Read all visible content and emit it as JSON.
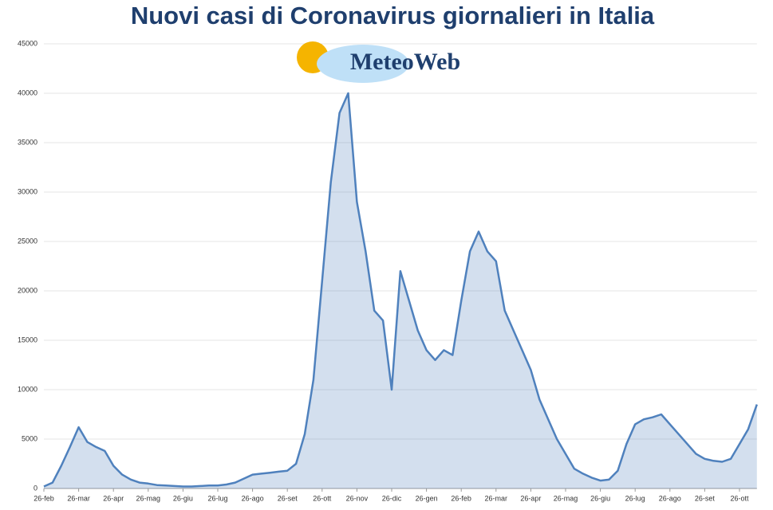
{
  "chart_data": {
    "type": "line",
    "title": "Nuovi casi di Coronavirus giornalieri in Italia",
    "annotations": [
      "MeteoWeb"
    ],
    "color": "#4f81bd",
    "grid": true,
    "ylim": [
      0,
      45000
    ],
    "yticks": [
      0,
      5000,
      10000,
      15000,
      20000,
      25000,
      30000,
      35000,
      40000,
      45000
    ],
    "categories": [
      "26-feb",
      null,
      null,
      null,
      "26-mar",
      null,
      null,
      null,
      "26-apr",
      null,
      null,
      null,
      "26-mag",
      null,
      null,
      null,
      "26-giu",
      null,
      null,
      null,
      "26-lug",
      null,
      null,
      null,
      "26-ago",
      null,
      null,
      null,
      "26-set",
      null,
      null,
      null,
      "26-ott",
      null,
      null,
      null,
      "26-nov",
      null,
      null,
      null,
      "26-dic",
      null,
      null,
      null,
      "26-gen",
      null,
      null,
      null,
      "26-feb",
      null,
      null,
      null,
      "26-mar",
      null,
      null,
      null,
      "26-apr",
      null,
      null,
      null,
      "26-mag",
      null,
      null,
      null,
      "26-giu",
      null,
      null,
      null,
      "26-lug",
      null,
      null,
      null,
      "26-ago",
      null,
      null,
      null,
      "26-set",
      null,
      null,
      null,
      "26-ott",
      null,
      null
    ],
    "values": [
      200,
      600,
      2300,
      4200,
      6200,
      4700,
      4200,
      3800,
      2300,
      1400,
      900,
      600,
      500,
      350,
      300,
      250,
      200,
      200,
      250,
      300,
      300,
      400,
      600,
      1000,
      1400,
      1500,
      1600,
      1700,
      1800,
      2500,
      5500,
      11000,
      21000,
      31000,
      38000,
      40000,
      29000,
      24000,
      18000,
      17000,
      10000,
      22000,
      19000,
      16000,
      14000,
      13000,
      14000,
      13500,
      19000,
      24000,
      26000,
      24000,
      23000,
      18000,
      16000,
      14000,
      12000,
      9000,
      7000,
      5000,
      3500,
      2000,
      1500,
      1100,
      800,
      900,
      1800,
      4500,
      6500,
      7000,
      7200,
      7500,
      6500,
      5500,
      4500,
      3500,
      3000,
      2800,
      2700,
      3000,
      4500,
      6000,
      8500
    ]
  }
}
